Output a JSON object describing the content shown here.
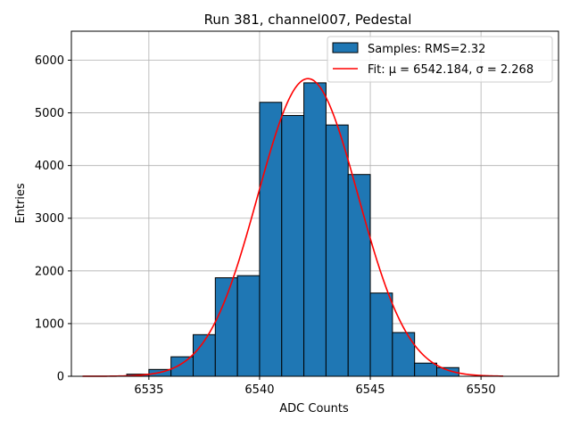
{
  "chart_data": {
    "type": "bar",
    "title": "Run 381, channel007, Pedestal",
    "xlabel": "ADC Counts",
    "ylabel": "Entries",
    "xlim": [
      6531.5,
      6553.5
    ],
    "ylim": [
      0,
      6550
    ],
    "x_ticks": [
      6535,
      6540,
      6545,
      6550
    ],
    "y_ticks": [
      0,
      1000,
      2000,
      3000,
      4000,
      5000,
      6000
    ],
    "grid": true,
    "legend_position": "top-right",
    "histogram": {
      "name": "Samples: RMS=2.32",
      "color": "#1f77b4",
      "bin_width": 1,
      "bin_starts": [
        6534,
        6535,
        6536,
        6537,
        6538,
        6539,
        6540,
        6541,
        6542,
        6543,
        6544,
        6545,
        6546,
        6547,
        6548
      ],
      "counts": [
        40,
        130,
        370,
        790,
        1870,
        1910,
        5200,
        4950,
        5570,
        4770,
        3830,
        1580,
        830,
        250,
        165
      ]
    },
    "fit": {
      "name": "Fit: μ = 6542.184, σ = 2.268",
      "color": "#ff0000",
      "mu": 6542.184,
      "sigma": 2.268,
      "amplitude": 5650,
      "x_range": [
        6532,
        6551
      ]
    }
  }
}
